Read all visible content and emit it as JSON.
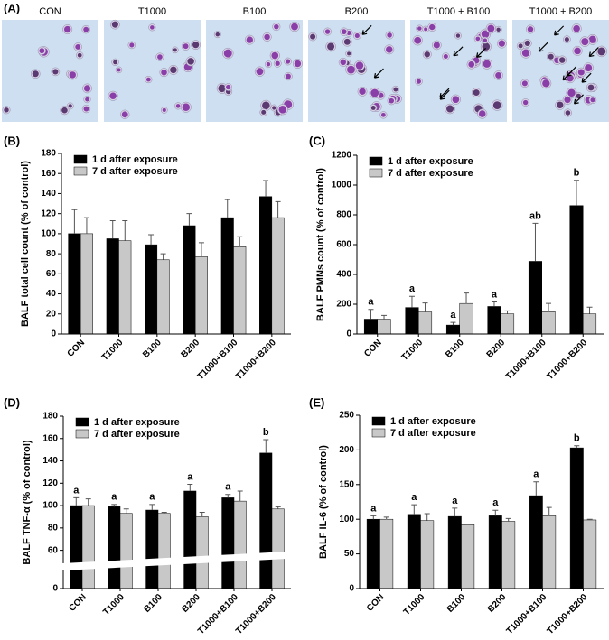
{
  "panel_a": {
    "label": "(A)",
    "images": [
      "CON",
      "T1000",
      "B100",
      "B200",
      "T1000 + B100",
      "T1000 + B200"
    ]
  },
  "chart_data": [
    {
      "type": "bar",
      "panel_label": "(B)",
      "y_label": "BALF total cell count (% of control)",
      "categories": [
        "CON",
        "T1000",
        "B100",
        "B200",
        "T1000+B100",
        "T1000+B200"
      ],
      "series": [
        {
          "name": "1 d after exposure",
          "color": "#000000",
          "values": [
            100,
            95,
            89,
            108,
            116,
            137
          ],
          "errors": [
            24,
            18,
            10,
            12,
            18,
            16
          ]
        },
        {
          "name": "7 d after exposure",
          "color": "#c8c8c8",
          "values": [
            100,
            93,
            74,
            77,
            87,
            116
          ],
          "errors": [
            16,
            20,
            6,
            14,
            10,
            16
          ]
        }
      ],
      "ylim": [
        0,
        180
      ],
      "yticks": [
        0,
        20,
        40,
        60,
        80,
        100,
        120,
        140,
        160,
        180
      ],
      "grid": false,
      "legend": "top-left"
    },
    {
      "type": "bar",
      "panel_label": "(C)",
      "y_label": "BALF PMNs count (% of control)",
      "categories": [
        "CON",
        "T1000",
        "B100",
        "B200",
        "T1000+B100",
        "T1000+B200"
      ],
      "series": [
        {
          "name": "1 d after exposure",
          "color": "#000000",
          "values": [
            100,
            178,
            60,
            185,
            488,
            862
          ],
          "errors": [
            65,
            75,
            18,
            30,
            255,
            170
          ]
        },
        {
          "name": "7 d after exposure",
          "color": "#c8c8c8",
          "values": [
            100,
            148,
            205,
            135,
            150,
            135
          ],
          "errors": [
            25,
            60,
            70,
            20,
            55,
            45
          ]
        }
      ],
      "annotations": [
        "a",
        "a",
        "a",
        "a",
        "ab",
        "b"
      ],
      "ylim": [
        0,
        1200
      ],
      "yticks": [
        0,
        200,
        400,
        600,
        800,
        1000,
        1200
      ],
      "grid": false,
      "legend": "top-left"
    },
    {
      "type": "bar",
      "panel_label": "(D)",
      "y_label": "BALF TNF-α (% of control)",
      "categories": [
        "CON",
        "T1000",
        "B100",
        "B200",
        "T1000+B100",
        "T1000+B200"
      ],
      "series": [
        {
          "name": "1 d after exposure",
          "color": "#000000",
          "values": [
            100,
            99,
            96,
            113,
            107,
            147
          ],
          "errors": [
            7,
            2,
            5,
            6,
            3,
            12
          ]
        },
        {
          "name": "7 d after exposure",
          "color": "#c8c8c8",
          "values": [
            100,
            93,
            93,
            90,
            104,
            97
          ],
          "errors": [
            6,
            4,
            1,
            4,
            9,
            2
          ]
        }
      ],
      "annotations": [
        "a",
        "a",
        "a",
        "a",
        "a",
        "b"
      ],
      "ylim": [
        0,
        180
      ],
      "axis_break": [
        10,
        50
      ],
      "yticks": [
        0,
        60,
        80,
        100,
        120,
        140,
        160,
        180
      ],
      "grid": false,
      "legend": "top-left"
    },
    {
      "type": "bar",
      "panel_label": "(E)",
      "y_label": "BALF IL-6 (% of control)",
      "categories": [
        "CON",
        "T1000",
        "B100",
        "B200",
        "T1000+B100",
        "T1000+B200"
      ],
      "series": [
        {
          "name": "1 d after exposure",
          "color": "#000000",
          "values": [
            100,
            107,
            104,
            105,
            134,
            203
          ],
          "errors": [
            5,
            14,
            12,
            8,
            20,
            3
          ]
        },
        {
          "name": "7 d after exposure",
          "color": "#c8c8c8",
          "values": [
            100,
            98,
            92,
            97,
            105,
            99
          ],
          "errors": [
            3,
            10,
            1,
            4,
            12,
            1
          ]
        }
      ],
      "annotations": [
        "a",
        "a",
        "a",
        "a",
        "a",
        "b"
      ],
      "ylim": [
        0,
        250
      ],
      "yticks": [
        0,
        50,
        100,
        150,
        200,
        250
      ],
      "grid": false,
      "legend": "top-left"
    }
  ]
}
